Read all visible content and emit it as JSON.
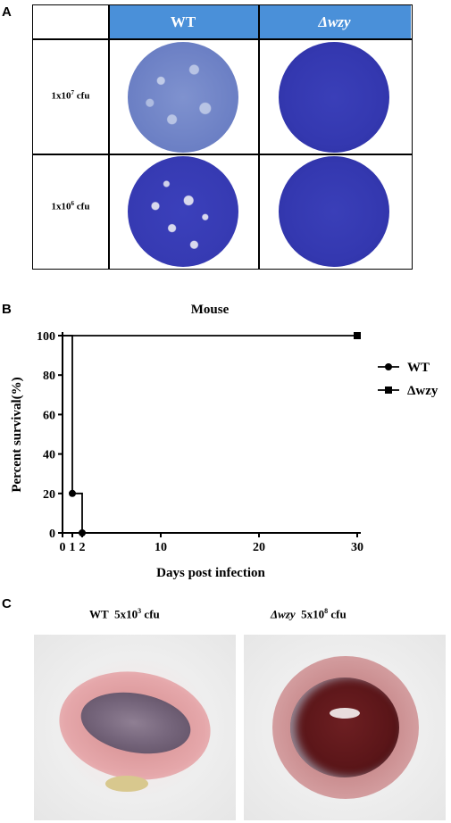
{
  "panelA": {
    "letter": "A",
    "col_headers": [
      "WT",
      "Δwzy"
    ],
    "rows": [
      {
        "label_base": "1x10",
        "label_exp": "7",
        "label_unit": " cfu"
      },
      {
        "label_base": "1x10",
        "label_exp": "6",
        "label_unit": " cfu"
      }
    ],
    "header_color": "#4a90d9"
  },
  "panelB": {
    "letter": "B",
    "chart_data": {
      "type": "line",
      "title": "Mouse",
      "xlabel": "Days post infection",
      "ylabel": "Percent survival(%)",
      "xlim": [
        0,
        30
      ],
      "ylim": [
        0,
        100
      ],
      "xticks": [
        0,
        1,
        2,
        10,
        20,
        30
      ],
      "xtick_labels": [
        "0",
        "1",
        "2",
        "10",
        "20",
        "30"
      ],
      "yticks": [
        0,
        20,
        40,
        60,
        80,
        100
      ],
      "series": [
        {
          "name": "WT",
          "marker": "circle",
          "step": true,
          "x": [
            0,
            1,
            2
          ],
          "y": [
            100,
            20,
            0
          ],
          "markers_x": [
            1,
            2
          ],
          "markers_y": [
            20,
            0
          ]
        },
        {
          "name": "Δwzy",
          "marker": "square",
          "step": true,
          "x": [
            0,
            30
          ],
          "y": [
            100,
            100
          ],
          "markers_x": [
            30
          ],
          "markers_y": [
            100
          ]
        }
      ],
      "legend": "right"
    }
  },
  "panelC": {
    "letter": "C",
    "captions": [
      {
        "strain": "WT",
        "dose_base": "5x10",
        "dose_exp": "3",
        "unit": " cfu"
      },
      {
        "strain": "Δwzy",
        "dose_base": "5x10",
        "dose_exp": "8",
        "unit": " cfu"
      }
    ]
  }
}
